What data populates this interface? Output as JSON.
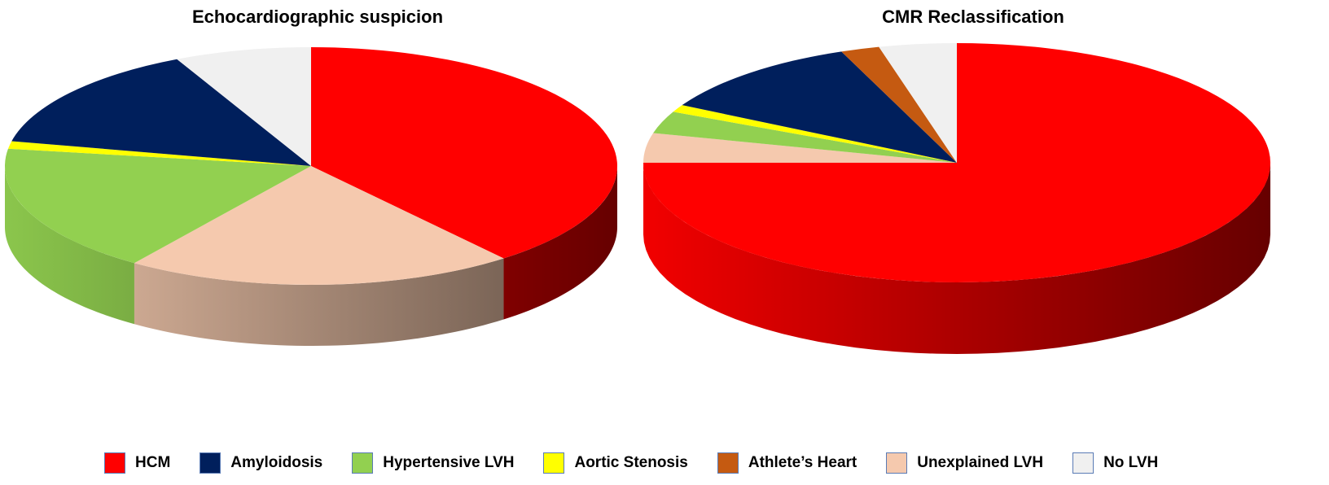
{
  "colors": {
    "HCM": "#ff0000",
    "Amyloidosis": "#001f5c",
    "Hypertensive LVH": "#92d050",
    "Aortic Stenosis": "#ffff00",
    "Athlete's Heart": "#c55a11",
    "Unexplained LVH": "#f5c9ae",
    "No LVH": "#f0f0f0"
  },
  "legend": [
    {
      "label": "HCM",
      "key": "HCM"
    },
    {
      "label": "Amyloidosis",
      "key": "Amyloidosis"
    },
    {
      "label": "Hypertensive LVH",
      "key": "Hypertensive LVH"
    },
    {
      "label": "Aortic  Stenosis",
      "key": "Aortic Stenosis"
    },
    {
      "label": "Athlete’s Heart",
      "key": "Athlete's Heart"
    },
    {
      "label": "Unexplained LVH",
      "key": "Unexplained LVH"
    },
    {
      "label": "No LVH",
      "key": "No LVH"
    }
  ],
  "chart_data": [
    {
      "type": "pie",
      "title": "Echocardiographic suspicion",
      "categories": [
        "HCM",
        "Unexplained LVH",
        "Hypertensive LVH",
        "Aortic Stenosis",
        "Amyloidosis",
        "No LVH"
      ],
      "values": [
        38,
        20,
        17,
        1,
        14,
        7
      ]
    },
    {
      "type": "pie",
      "title": "CMR Reclassification",
      "categories": [
        "HCM",
        "Unexplained LVH",
        "Hypertensive LVH",
        "Aortic Stenosis",
        "Amyloidosis",
        "Athlete's Heart",
        "No LVH"
      ],
      "values": [
        75,
        4,
        3,
        1,
        11,
        2,
        4
      ]
    }
  ]
}
